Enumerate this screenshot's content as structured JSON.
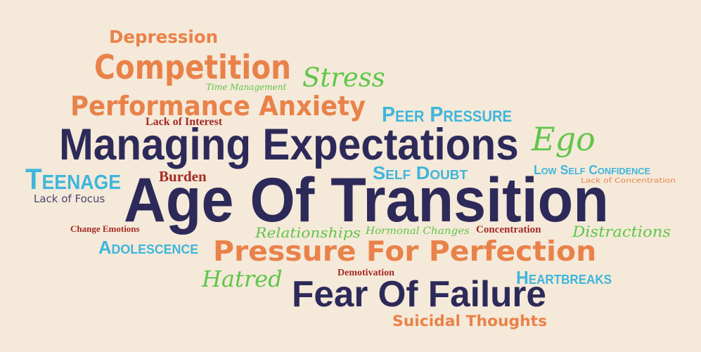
{
  "words": {
    "depression": "Depression",
    "competition": "Competition",
    "stress": "Stress",
    "time_management": "Time Management",
    "performance_anxiety": "Performance Anxiety",
    "peer_pressure": "Peer Pressure",
    "lack_of_interest": "Lack of Interest",
    "managing_expectations": "Managing Expectations",
    "ego": "Ego",
    "teenage": "Teenage",
    "burden": "Burden",
    "self_doubt": "Self Doubt",
    "low_self_confidence": "Low Self Confidence",
    "lack_of_concentration": "Lack of Concentration",
    "lack_of_focus": "Lack of Focus",
    "age_of_transition": "Age Of Transition",
    "change_emotions": "Change Emotions",
    "relationships": "Relationships",
    "hormonal_changes": "Hormonal Changes",
    "concentration": "Concentration",
    "distractions": "Distractions",
    "adolescence": "Adolescence",
    "pressure_for_perfection": "Pressure For Perfection",
    "hatred": "Hatred",
    "demotivation": "Demotivation",
    "heartbreaks": "Heartbreaks",
    "fear_of_failure": "Fear Of Failure",
    "suicidal_thoughts": "Suicidal Thoughts"
  },
  "colors": {
    "background": "#F5E9D9",
    "navy": "#2D2A5A",
    "orange": "#E9824A",
    "green": "#5FC64A",
    "blue": "#3EB6DB",
    "red": "#A32B25"
  }
}
